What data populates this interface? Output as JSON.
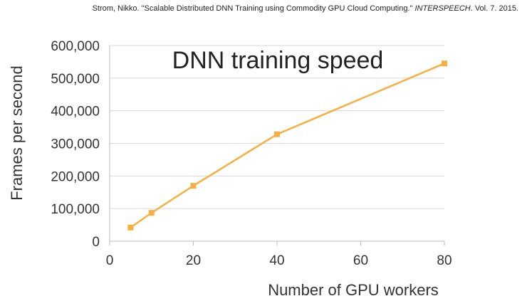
{
  "citation": {
    "prefix": "Strom, Nikko. \"Scalable Distributed DNN Training using Commodity GPU Cloud Computing.\"",
    "venue": "INTERSPEECH",
    "suffix": ". Vol. 7. 2015."
  },
  "chart_data": {
    "type": "line",
    "title": "DNN training speed",
    "xlabel": "Number of GPU workers",
    "ylabel": "Frames per second",
    "xlim": [
      0,
      80
    ],
    "ylim": [
      0,
      600000
    ],
    "x_ticks": [
      0,
      20,
      40,
      60,
      80
    ],
    "x_tick_labels": [
      "0",
      "20",
      "40",
      "60",
      "80"
    ],
    "y_ticks": [
      0,
      100000,
      200000,
      300000,
      400000,
      500000,
      600000
    ],
    "y_tick_labels": [
      "0",
      "100,000",
      "200,000",
      "300,000",
      "400,000",
      "500,000",
      "600,000"
    ],
    "grid": "horizontal",
    "legend": "none",
    "series": [
      {
        "x": [
          5,
          10,
          20,
          40,
          80
        ],
        "values": [
          42000,
          87000,
          170000,
          328000,
          545000
        ],
        "color": "#f5b041",
        "marker": "square"
      }
    ]
  }
}
